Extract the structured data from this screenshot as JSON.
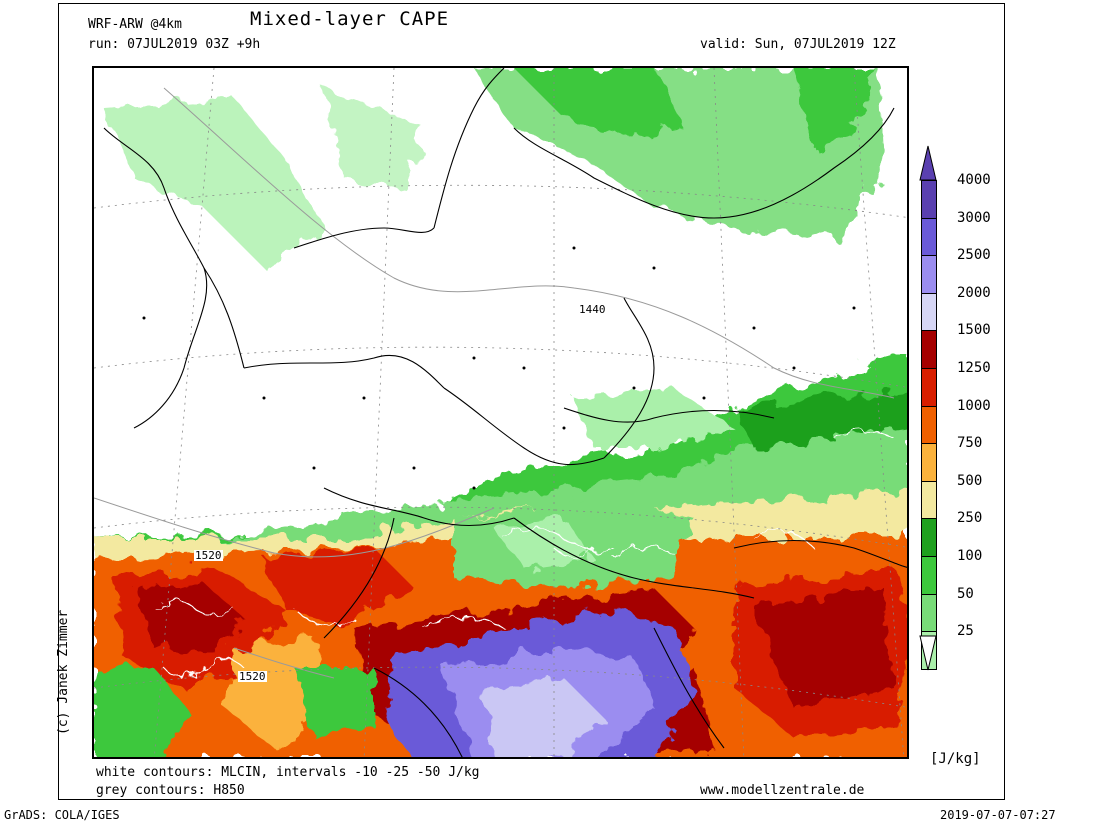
{
  "header": {
    "model": "WRF-ARW @4km",
    "title": "Mixed-layer CAPE",
    "run": "run: 07JUL2019 03Z +9h",
    "valid": "valid: Sun, 07JUL2019 12Z"
  },
  "footer": {
    "white_contours": "white contours: MLCIN, intervals -10 -25 -50 J/kg",
    "grey_contours": "grey contours: H850",
    "website": "www.modellzentrale.de",
    "grads": "GrADS: COLA/IGES",
    "timestamp": "2019-07-07-07:27"
  },
  "credit": "(c) Janek Zimmer",
  "colorbar": {
    "unit": "[J/kg]",
    "levels": [
      {
        "label": "4000",
        "color": "#5a40b0"
      },
      {
        "label": "3000",
        "color": "#6a5ad8"
      },
      {
        "label": "2500",
        "color": "#9b8df0"
      },
      {
        "label": "2000",
        "color": "#d6d6f5"
      },
      {
        "label": "1500",
        "color": "#a50000"
      },
      {
        "label": "1250",
        "color": "#d81e00"
      },
      {
        "label": "1000",
        "color": "#f06000"
      },
      {
        "label": "750",
        "color": "#fbb23c"
      },
      {
        "label": "500",
        "color": "#f3e9a0"
      },
      {
        "label": "250",
        "color": "#1ea01e"
      },
      {
        "label": "100",
        "color": "#3cc83c"
      },
      {
        "label": "50",
        "color": "#78dc78"
      },
      {
        "label": "25",
        "color": "#aaf0aa"
      }
    ],
    "bottom_color": "#dcfadc"
  },
  "contour_labels": {
    "north": "1440",
    "southwest_upper": "1520",
    "southwest_lower": "1520"
  }
}
